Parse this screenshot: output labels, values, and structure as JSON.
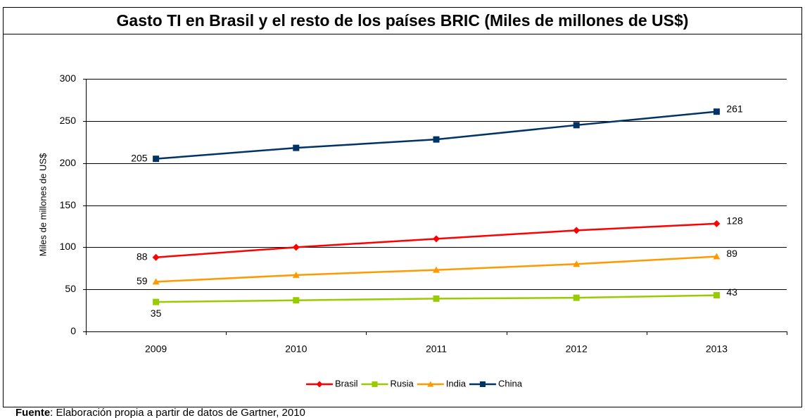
{
  "chart_data": {
    "type": "line",
    "title": "Gasto TI en Brasil y el resto de los países BRIC (Miles de millones de US$)",
    "y_label": "Miles de millones de US$",
    "categories": [
      "2009",
      "2010",
      "2011",
      "2012",
      "2013"
    ],
    "series": [
      {
        "name": "Brasil",
        "color": "#ff0000",
        "marker": "diamond",
        "values": [
          88,
          100,
          110,
          120,
          128
        ],
        "value_labels": [
          "88",
          null,
          null,
          null,
          "128"
        ]
      },
      {
        "name": "Rusia",
        "color": "#99cc00",
        "marker": "square",
        "values": [
          35,
          37,
          39,
          40,
          43
        ],
        "value_labels": [
          "35",
          null,
          null,
          null,
          "43"
        ]
      },
      {
        "name": "India",
        "color": "#ff9900",
        "marker": "triangle",
        "values": [
          59,
          67,
          73,
          80,
          89
        ],
        "value_labels": [
          "59",
          null,
          null,
          null,
          "89"
        ]
      },
      {
        "name": "China",
        "color": "#003366",
        "marker": "square",
        "values": [
          205,
          218,
          228,
          245,
          261
        ],
        "value_labels": [
          "205",
          null,
          null,
          null,
          "261"
        ]
      }
    ],
    "ylim": [
      0,
      300
    ],
    "yticks": [
      0,
      50,
      100,
      150,
      200,
      250,
      300
    ],
    "grid": true,
    "legend": "bottom",
    "source_label": "Fuente",
    "source_text": ": Elaboración propia a partir de datos de Gartner, 2010"
  }
}
